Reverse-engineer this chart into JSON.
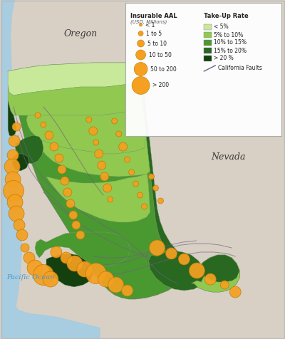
{
  "legend_title_aal": "Insurable AAL",
  "legend_subtitle_aal": "(USD, Millions)",
  "legend_title_rate": "Take-Up Rate",
  "aal_labels": [
    "< 1",
    "1 to 5",
    "5 to 10",
    "10 to 50",
    "50 to 200",
    "> 200"
  ],
  "aal_radii_pts": [
    2.5,
    4.0,
    5.5,
    8.0,
    11.0,
    15.0
  ],
  "aal_color": "#F5A020",
  "aal_edge_color": "#C07800",
  "take_up_colors": [
    "#C8E89A",
    "#90C850",
    "#4A9830",
    "#286820",
    "#144010"
  ],
  "take_up_labels": [
    "< 5%",
    "5% to 10%",
    "10% to 15%",
    "15% to 20%",
    "> 20 %"
  ],
  "ocean_color": "#A8CCE0",
  "terrain_color": "#D8D0C4",
  "legend_bg": "#FFFFFF",
  "fault_color": "#706080",
  "county_edge": "#80A070",
  "label_oregon": "Oregon",
  "label_nevada": "Nevada",
  "label_pacific": "Pacific Ocean",
  "label_faults": "California Faults",
  "ca_outline_x": [
    18,
    20,
    16,
    14,
    18,
    22,
    28,
    34,
    40,
    44,
    46,
    48,
    52,
    56,
    60,
    64,
    68,
    72,
    74,
    76,
    78,
    80,
    84,
    88,
    90,
    92,
    95,
    98,
    100,
    102,
    104,
    108,
    114,
    118,
    122,
    126,
    128,
    128,
    126,
    122,
    118,
    114,
    108,
    104,
    100,
    96,
    94,
    92,
    90,
    86,
    82,
    78,
    74,
    72,
    68,
    65,
    62,
    59,
    56,
    54,
    52,
    50,
    48,
    46,
    44,
    40,
    36,
    32,
    28,
    24,
    20,
    16,
    12,
    10,
    10,
    12,
    14,
    18
  ],
  "ca_outline_y": [
    80,
    76,
    72,
    66,
    62,
    58,
    54,
    52,
    50,
    48,
    46,
    44,
    42,
    40,
    38,
    36,
    34,
    36,
    38,
    42,
    46,
    50,
    54,
    58,
    62,
    66,
    70,
    74,
    78,
    84,
    90,
    96,
    102,
    106,
    110,
    116,
    122,
    128,
    134,
    140,
    146,
    152,
    158,
    164,
    170,
    176,
    182,
    188,
    194,
    200,
    206,
    212,
    218,
    224,
    228,
    232,
    236,
    240,
    244,
    248,
    252,
    256,
    260,
    262,
    264,
    268,
    270,
    272,
    270,
    268,
    264,
    258,
    250,
    240,
    220,
    200,
    180,
    80
  ],
  "circles": [
    [
      30,
      120,
      3
    ],
    [
      35,
      140,
      2
    ],
    [
      32,
      160,
      3
    ],
    [
      28,
      180,
      4
    ],
    [
      25,
      200,
      4
    ],
    [
      22,
      220,
      5
    ],
    [
      20,
      238,
      6
    ],
    [
      22,
      256,
      5
    ],
    [
      26,
      270,
      4
    ],
    [
      30,
      284,
      4
    ],
    [
      34,
      300,
      4
    ],
    [
      38,
      316,
      3
    ],
    [
      42,
      332,
      3
    ],
    [
      48,
      346,
      3
    ],
    [
      54,
      360,
      4
    ],
    [
      62,
      374,
      5
    ],
    [
      68,
      386,
      6
    ],
    [
      75,
      396,
      5
    ],
    [
      50,
      120,
      2
    ],
    [
      58,
      136,
      2
    ],
    [
      64,
      150,
      3
    ],
    [
      70,
      164,
      2
    ],
    [
      76,
      180,
      3
    ],
    [
      80,
      196,
      3
    ],
    [
      84,
      212,
      3
    ],
    [
      86,
      228,
      2
    ],
    [
      88,
      244,
      3
    ],
    [
      90,
      258,
      3
    ],
    [
      92,
      272,
      2
    ],
    [
      96,
      288,
      3
    ],
    [
      100,
      300,
      3
    ],
    [
      104,
      314,
      3
    ],
    [
      108,
      328,
      3
    ],
    [
      118,
      118,
      2
    ],
    [
      124,
      132,
      2
    ],
    [
      126,
      148,
      2
    ],
    [
      128,
      164,
      3
    ],
    [
      130,
      182,
      2
    ],
    [
      132,
      198,
      3
    ],
    [
      134,
      214,
      3
    ],
    [
      136,
      230,
      2
    ],
    [
      140,
      248,
      3
    ],
    [
      144,
      262,
      2
    ],
    [
      84,
      374,
      5
    ],
    [
      90,
      390,
      5
    ],
    [
      100,
      404,
      5
    ],
    [
      112,
      412,
      4
    ],
    [
      124,
      420,
      5
    ],
    [
      138,
      424,
      4
    ],
    [
      152,
      428,
      3
    ],
    [
      164,
      428,
      3
    ],
    [
      178,
      416,
      4
    ],
    [
      192,
      402,
      3
    ],
    [
      204,
      390,
      4
    ],
    [
      218,
      352,
      5
    ],
    [
      232,
      360,
      4
    ],
    [
      248,
      368,
      3
    ],
    [
      262,
      372,
      4
    ],
    [
      278,
      378,
      5
    ],
    [
      292,
      390,
      4
    ],
    [
      308,
      400,
      3
    ],
    [
      322,
      408,
      4
    ]
  ]
}
